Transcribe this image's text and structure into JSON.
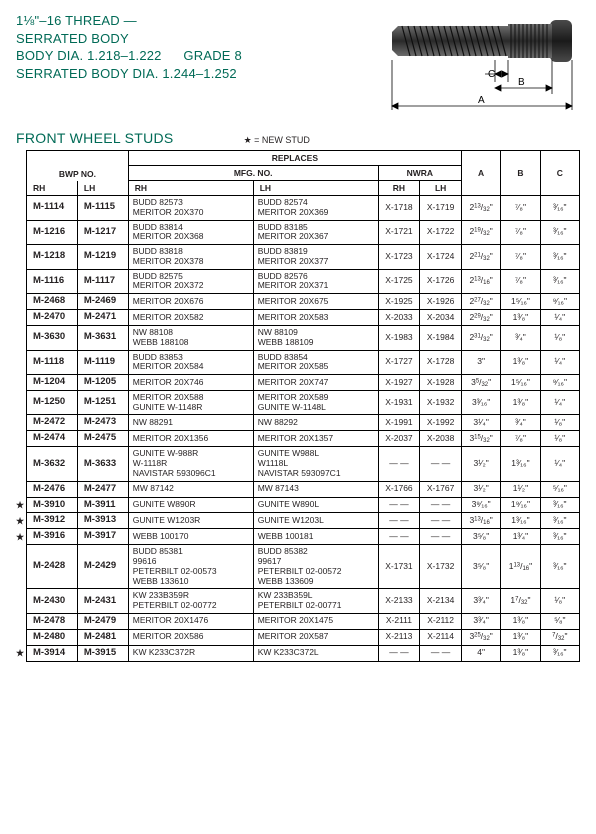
{
  "header": {
    "line1": "1⅛\"–16 THREAD —",
    "line2": "SERRATED BODY",
    "line3a": "BODY DIA. 1.218–1.222",
    "line3b": "GRADE 8",
    "line4": "SERRATED BODY DIA. 1.244–1.252"
  },
  "subheader": {
    "title": "FRONT WHEEL STUDS",
    "legend": "★ = NEW STUD"
  },
  "colors": {
    "brand": "#006a56",
    "border": "#000000",
    "text": "#231f20"
  },
  "tableHeaders": {
    "replaces": "REPLACES",
    "bwp": "BWP NO.",
    "mfg": "MFG. NO.",
    "nwra": "NWRA",
    "rh": "RH",
    "lh": "LH",
    "a": "A",
    "b": "B",
    "c": "C"
  },
  "rows": [
    {
      "star": false,
      "rh": "M-1114",
      "lh": "M-1115",
      "mfgR": "BUDD 82573\nMERITOR 20X370",
      "mfgL": "BUDD 82574\nMERITOR 20X369",
      "nwraR": "X-1718",
      "nwraL": "X-1719",
      "a": "2<sup>13</sup>/<sub>32</sub>\"",
      "b": "⁷⁄₈\"",
      "c": "³⁄₁₆\""
    },
    {
      "star": false,
      "rh": "M-1216",
      "lh": "M-1217",
      "mfgR": "BUDD 83814\nMERITOR 20X368",
      "mfgL": "BUDD 83185\nMERITOR 20X367",
      "nwraR": "X-1721",
      "nwraL": "X-1722",
      "a": "2<sup>19</sup>/<sub>32</sub>\"",
      "b": "⁷⁄₈\"",
      "c": "³⁄₁₆\""
    },
    {
      "star": false,
      "rh": "M-1218",
      "lh": "M-1219",
      "mfgR": "BUDD 83818\nMERITOR 20X378",
      "mfgL": "BUDD 83819\nMERITOR 20X377",
      "nwraR": "X-1723",
      "nwraL": "X-1724",
      "a": "2<sup>21</sup>/<sub>32</sub>\"",
      "b": "⁷⁄₈\"",
      "c": "³⁄₁₆\""
    },
    {
      "star": false,
      "rh": "M-1116",
      "lh": "M-1117",
      "mfgR": "BUDD 82575\nMERITOR 20X372",
      "mfgL": "BUDD 82576\nMERITOR 20X371",
      "nwraR": "X-1725",
      "nwraL": "X-1726",
      "a": "2<sup>13</sup>/<sub>16</sub>\"",
      "b": "⁷⁄₈\"",
      "c": "³⁄₁₆\""
    },
    {
      "star": false,
      "rh": "M-2468",
      "lh": "M-2469",
      "mfgR": "MERITOR 20X676",
      "mfgL": "MERITOR 20X675",
      "nwraR": "X-1925",
      "nwraL": "X-1926",
      "a": "2<sup>27</sup>/<sub>32</sub>\"",
      "b": "1⁵⁄₁₆\"",
      "c": "⁹⁄₁₆\""
    },
    {
      "star": false,
      "rh": "M-2470",
      "lh": "M-2471",
      "mfgR": "MERITOR 20X582",
      "mfgL": "MERITOR 20X583",
      "nwraR": "X-2033",
      "nwraL": "X-2034",
      "a": "2<sup>29</sup>/<sub>32</sub>\"",
      "b": "1³⁄₈\"",
      "c": "¹⁄₄\""
    },
    {
      "star": false,
      "rh": "M-3630",
      "lh": "M-3631",
      "mfgR": "NW 88108\nWEBB 188108",
      "mfgL": "NW 88109\nWEBB 188109",
      "nwraR": "X-1983",
      "nwraL": "X-1984",
      "a": "2<sup>31</sup>/<sub>32</sub>\"",
      "b": "³⁄₄\"",
      "c": "¹⁄₈\""
    },
    {
      "star": false,
      "rh": "M-1118",
      "lh": "M-1119",
      "mfgR": "BUDD 83853\nMERITOR 20X584",
      "mfgL": "BUDD 83854\nMERITOR 20X585",
      "nwraR": "X-1727",
      "nwraL": "X-1728",
      "a": "3\"",
      "b": "1³⁄₈\"",
      "c": "¹⁄₄\""
    },
    {
      "star": false,
      "rh": "M-1204",
      "lh": "M-1205",
      "mfgR": "MERITOR 20X746",
      "mfgL": "MERITOR 20X747",
      "nwraR": "X-1927",
      "nwraL": "X-1928",
      "a": "3<sup>5</sup>/<sub>32</sub>\"",
      "b": "1⁵⁄₁₆\"",
      "c": "⁹⁄₁₆\""
    },
    {
      "star": false,
      "rh": "M-1250",
      "lh": "M-1251",
      "mfgR": "MERITOR 20X588\nGUNITE W-1148R",
      "mfgL": "MERITOR 20X589\nGUNITE W-1148L",
      "nwraR": "X-1931",
      "nwraL": "X-1932",
      "a": "3³⁄₁₆\"",
      "b": "1³⁄₈\"",
      "c": "¹⁄₄\""
    },
    {
      "star": false,
      "rh": "M-2472",
      "lh": "M-2473",
      "mfgR": "NW 88291",
      "mfgL": "NW 88292",
      "nwraR": "X-1991",
      "nwraL": "X-1992",
      "a": "3¹⁄₄\"",
      "b": "³⁄₄\"",
      "c": "¹⁄₈\""
    },
    {
      "star": false,
      "rh": "M-2474",
      "lh": "M-2475",
      "mfgR": "MERITOR 20X1356",
      "mfgL": "MERITOR 20X1357",
      "nwraR": "X-2037",
      "nwraL": "X-2038",
      "a": "3<sup>15</sup>/<sub>32</sub>\"",
      "b": "⁷⁄₈\"",
      "c": "¹⁄₈\""
    },
    {
      "star": false,
      "rh": "M-3632",
      "lh": "M-3633",
      "mfgR": "GUNITE W-988R\n            W-1118R\nNAVISTAR 593096C1",
      "mfgL": "GUNITE W988L\n            W1118L\nNAVISTAR 593097C1",
      "nwraR": "— —",
      "nwraL": "— —",
      "a": "3¹⁄₂\"",
      "b": "1³⁄₁₆\"",
      "c": "¹⁄₄\""
    },
    {
      "star": false,
      "rh": "M-2476",
      "lh": "M-2477",
      "mfgR": "MW 87142",
      "mfgL": "MW 87143",
      "nwraR": "X-1766",
      "nwraL": "X-1767",
      "a": "3¹⁄₂\"",
      "b": "1¹⁄₂\"",
      "c": "⁵⁄₁₆\""
    },
    {
      "star": true,
      "rh": "M-3910",
      "lh": "M-3911",
      "mfgR": "GUNITE W890R",
      "mfgL": "GUNITE W890L",
      "nwraR": "— —",
      "nwraL": "— —",
      "a": "3⁹⁄₁₆\"",
      "b": "1⁹⁄₁₆\"",
      "c": "³⁄₁₆\""
    },
    {
      "star": true,
      "rh": "M-3912",
      "lh": "M-3913",
      "mfgR": "GUNITE W1203R",
      "mfgL": "GUNITE W1203L",
      "nwraR": "— —",
      "nwraL": "— —",
      "a": "3<sup>13</sup>/<sub>16</sub>\"",
      "b": "1³⁄₁₆\"",
      "c": "³⁄₁₆\""
    },
    {
      "star": true,
      "rh": "M-3916",
      "lh": "M-3917",
      "mfgR": "WEBB 100170",
      "mfgL": "WEBB 100181",
      "nwraR": "— —",
      "nwraL": "— —",
      "a": "3⁵⁄₈\"",
      "b": "1³⁄₄\"",
      "c": "³⁄₁₆\""
    },
    {
      "star": false,
      "rh": "M-2428",
      "lh": "M-2429",
      "mfgR": "BUDD 85381\n            99616\nPETERBILT 02-00573\nWEBB 133610",
      "mfgL": "BUDD 85382\n            99617\nPETERBILT 02-00572\nWEBB 133609",
      "nwraR": "X-1731",
      "nwraL": "X-1732",
      "a": "3⁵⁄₈\"",
      "b": "1<sup>13</sup>/<sub>16</sub>\"",
      "c": "³⁄₁₆\""
    },
    {
      "star": false,
      "rh": "M-2430",
      "lh": "M-2431",
      "mfgR": "KW 233B359R\nPETERBILT 02-00772",
      "mfgL": "KW 233B359L\nPETERBILT 02-00771",
      "nwraR": "X-2133",
      "nwraL": "X-2134",
      "a": "3³⁄₄\"",
      "b": "1<sup>7</sup>/<sub>32</sub>\"",
      "c": "¹⁄₈\""
    },
    {
      "star": false,
      "rh": "M-2478",
      "lh": "M-2479",
      "mfgR": "MERITOR 20X1476",
      "mfgL": "MERITOR 20X1475",
      "nwraR": "X-2111",
      "nwraL": "X-2112",
      "a": "3³⁄₄\"",
      "b": "1³⁄₈\"",
      "c": "⁵⁄₈\""
    },
    {
      "star": false,
      "rh": "M-2480",
      "lh": "M-2481",
      "mfgR": "MERITOR 20X586",
      "mfgL": "MERITOR 20X587",
      "nwraR": "X-2113",
      "nwraL": "X-2114",
      "a": "3<sup>25</sup>/<sub>32</sub>\"",
      "b": "1³⁄₈\"",
      "c": "<sup>7</sup>/<sub>32</sub>\""
    },
    {
      "star": true,
      "rh": "M-3914",
      "lh": "M-3915",
      "mfgR": "KW K233C372R",
      "mfgL": "KW K233C372L",
      "nwraR": "— —",
      "nwraL": "— —",
      "a": "4\"",
      "b": "1³⁄₈\"",
      "c": "³⁄₁₆\""
    }
  ]
}
